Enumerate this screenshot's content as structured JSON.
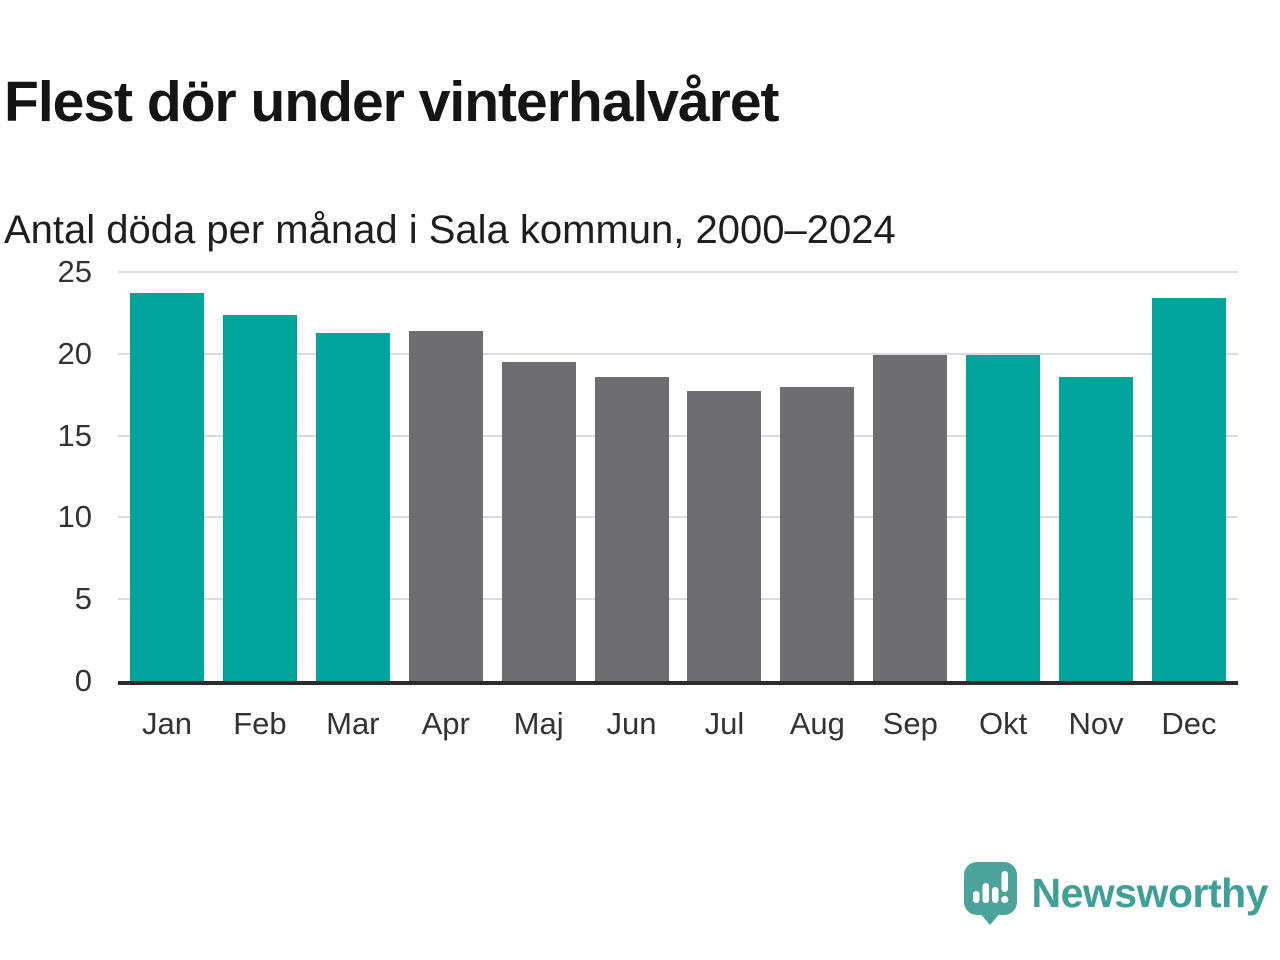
{
  "chart_data": {
    "type": "bar",
    "title": "Flest dör under vinterhalvåret",
    "subtitle": "Antal döda per månad i Sala kommun, 2000–2024",
    "categories": [
      "Jan",
      "Feb",
      "Mar",
      "Apr",
      "Maj",
      "Jun",
      "Jul",
      "Aug",
      "Sep",
      "Okt",
      "Nov",
      "Dec"
    ],
    "values": [
      23.7,
      22.4,
      21.3,
      21.4,
      19.5,
      18.6,
      17.7,
      18.0,
      19.9,
      19.9,
      18.6,
      23.4
    ],
    "bar_seasons": [
      "winter",
      "winter",
      "winter",
      "summer",
      "summer",
      "summer",
      "summer",
      "summer",
      "summer",
      "winter",
      "winter",
      "winter"
    ],
    "colors": {
      "winter": "#00A49B",
      "summer": "#6E6E72"
    },
    "xlabel": "",
    "ylabel": "",
    "ylim": [
      0,
      25
    ],
    "yticks": [
      0,
      5,
      10,
      15,
      20,
      25
    ],
    "grid": "horizontal-only",
    "legend": "none",
    "grid_color": "#DCDCDC",
    "axis_color": "#2B2B2B",
    "tick_label_color": "#333333"
  },
  "footer": {
    "brand_label": "Newsworthy",
    "brand_text_color": "#3FA098",
    "brand_icon_color": "#4BA39B",
    "brand_icon": "newsworthy-speech-bubble-bar-chart-icon"
  }
}
